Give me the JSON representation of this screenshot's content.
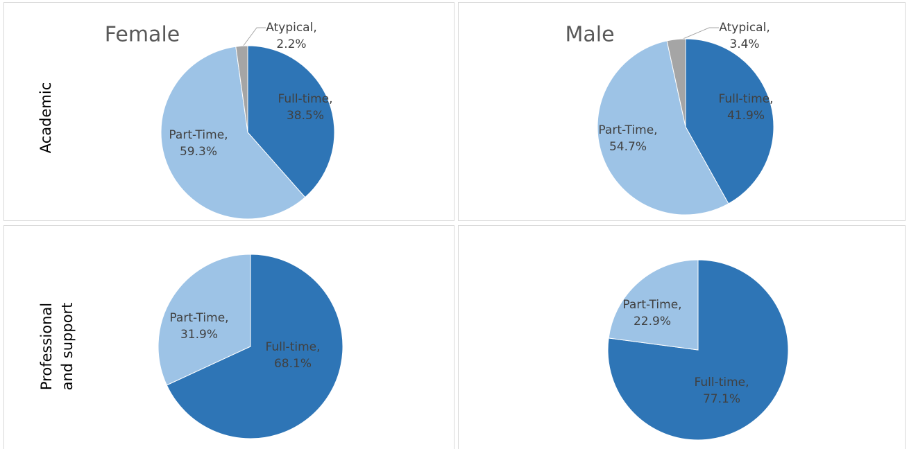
{
  "chart_data": [
    {
      "type": "pie",
      "title": "Female",
      "row_label": "Academic",
      "values": [
        38.5,
        59.3,
        2.2
      ],
      "value_labels": [
        "Full-time, 38.5%",
        "Part-Time, 59.3%",
        "Atypical, 2.2%"
      ],
      "colors": [
        "#2e75b6",
        "#9dc3e6",
        "#a5a5a5"
      ]
    },
    {
      "type": "pie",
      "title": "Male",
      "values": [
        41.9,
        54.7,
        3.4
      ],
      "value_labels": [
        "Full-time, 41.9%",
        "Part-Time, 54.7%",
        "Atypical, 3.4%"
      ],
      "colors": [
        "#2e75b6",
        "#9dc3e6",
        "#a5a5a5"
      ]
    },
    {
      "type": "pie",
      "row_label": "Professional and support",
      "values": [
        68.1,
        31.9
      ],
      "value_labels": [
        "Full-time, 68.1%",
        "Part-Time, 31.9%"
      ],
      "colors": [
        "#2e75b6",
        "#9dc3e6"
      ]
    },
    {
      "type": "pie",
      "values": [
        77.1,
        22.9
      ],
      "value_labels": [
        "Full-time, 77.1%",
        "Part-Time, 22.9%"
      ],
      "colors": [
        "#2e75b6",
        "#9dc3e6"
      ]
    }
  ]
}
